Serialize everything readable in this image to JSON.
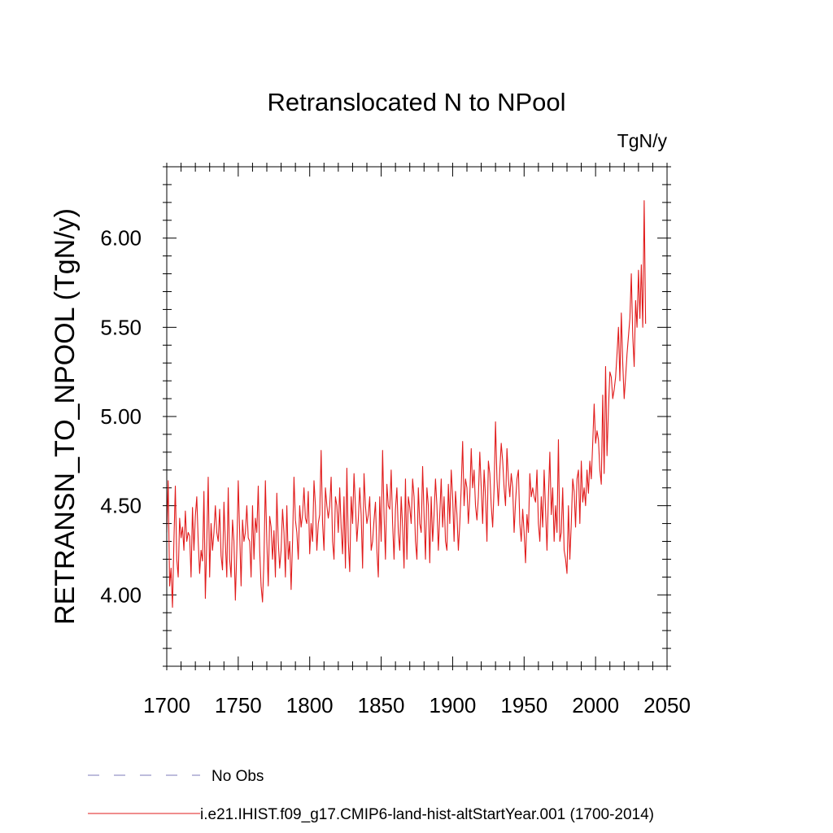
{
  "chart_data": {
    "type": "line",
    "title": "Retranslocated N to NPool",
    "units_label": "TgN/y",
    "ylabel": "RETRANSN_TO_NPOOL  (TgN/y)",
    "xlabel": "",
    "xlim": [
      1700,
      2050
    ],
    "ylim": [
      3.6,
      6.4
    ],
    "x_ticks": [
      1700,
      1750,
      1800,
      1850,
      1900,
      1950,
      2000,
      2050
    ],
    "y_ticks": [
      "4.00",
      "4.50",
      "5.00",
      "5.50",
      "6.00"
    ],
    "grid": false,
    "legend_placement": "bottom",
    "legend": [
      {
        "label": "No Obs",
        "style": "dashed",
        "color": "#7b78b8"
      },
      {
        "label": "i.e21.IHIST.f09_g17.CMIP6-land-hist-altStartYear.001 (1700-2014)",
        "style": "solid",
        "color": "#e11b1b"
      }
    ],
    "series": [
      {
        "name": "i.e21.IHIST.f09_g17.CMIP6-land-hist-altStartYear.001 (1700-2014)",
        "color": "#e11b1b",
        "x_start": 1700,
        "x_step": 1,
        "values": [
          4.35,
          4.64,
          4.05,
          4.15,
          3.93,
          4.3,
          4.61,
          4.2,
          4.1,
          4.43,
          4.32,
          4.38,
          4.25,
          4.47,
          4.3,
          4.35,
          4.33,
          4.1,
          4.49,
          4.25,
          4.44,
          4.55,
          4.3,
          4.12,
          4.25,
          4.19,
          4.58,
          3.98,
          4.3,
          4.66,
          4.1,
          4.4,
          4.25,
          4.35,
          4.5,
          4.35,
          4.3,
          4.48,
          4.22,
          4.14,
          4.52,
          4.29,
          4.1,
          4.6,
          4.2,
          4.1,
          4.42,
          4.3,
          3.97,
          4.25,
          4.64,
          4.35,
          4.05,
          4.42,
          4.3,
          4.35,
          4.5,
          4.32,
          4.3,
          4.1,
          4.5,
          4.2,
          4.43,
          4.35,
          4.61,
          4.25,
          4.05,
          3.96,
          4.2,
          4.64,
          4.3,
          4.05,
          4.44,
          4.38,
          4.2,
          4.36,
          4.1,
          4.57,
          4.3,
          4.15,
          4.25,
          4.48,
          4.35,
          4.1,
          4.5,
          4.2,
          4.3,
          4.03,
          4.3,
          4.66,
          4.42,
          4.35,
          4.2,
          4.5,
          4.38,
          4.45,
          4.6,
          4.43,
          4.4,
          4.58,
          4.23,
          4.4,
          4.3,
          4.64,
          4.5,
          4.25,
          4.4,
          4.45,
          4.81,
          4.4,
          4.25,
          4.6,
          4.5,
          4.43,
          4.5,
          4.66,
          4.3,
          4.2,
          4.55,
          4.5,
          4.35,
          4.6,
          4.38,
          4.23,
          4.55,
          4.15,
          4.71,
          4.3,
          4.13,
          4.55,
          4.4,
          4.68,
          4.5,
          4.3,
          4.42,
          4.6,
          4.45,
          4.15,
          4.68,
          4.5,
          4.4,
          4.45,
          4.55,
          4.25,
          4.3,
          4.42,
          4.52,
          4.25,
          4.1,
          4.55,
          4.3,
          4.81,
          4.45,
          4.2,
          4.62,
          4.5,
          4.48,
          4.7,
          4.4,
          4.2,
          4.48,
          4.6,
          4.35,
          4.25,
          4.55,
          4.38,
          4.15,
          4.65,
          4.2,
          4.55,
          4.49,
          4.4,
          4.65,
          4.55,
          4.3,
          4.2,
          4.6,
          4.4,
          4.35,
          4.72,
          4.45,
          4.2,
          4.6,
          4.5,
          4.18,
          4.55,
          4.3,
          4.45,
          4.65,
          4.5,
          4.25,
          4.45,
          4.65,
          4.38,
          4.55,
          4.3,
          4.25,
          4.62,
          4.4,
          4.7,
          4.55,
          4.3,
          4.58,
          4.45,
          4.25,
          4.4,
          4.6,
          4.86,
          4.5,
          4.65,
          4.6,
          4.4,
          4.55,
          4.82,
          4.6,
          4.7,
          4.5,
          4.42,
          4.55,
          4.8,
          4.6,
          4.4,
          4.7,
          4.55,
          4.3,
          4.75,
          4.68,
          4.5,
          4.38,
          4.6,
          4.97,
          4.65,
          4.5,
          4.7,
          4.85,
          4.75,
          4.6,
          4.5,
          4.82,
          4.65,
          4.55,
          4.68,
          4.6,
          4.35,
          4.52,
          4.65,
          4.7,
          4.4,
          4.3,
          4.48,
          4.35,
          4.18,
          4.45,
          4.35,
          4.68,
          4.55,
          4.6,
          4.55,
          4.52,
          4.7,
          4.4,
          4.3,
          4.55,
          4.38,
          4.7,
          4.48,
          4.25,
          4.55,
          4.8,
          4.45,
          4.6,
          4.3,
          4.5,
          4.35,
          4.87,
          4.3,
          4.35,
          4.6,
          4.25,
          4.2,
          4.12,
          4.5,
          4.2,
          4.4,
          4.65,
          4.58,
          4.38,
          4.65,
          4.7,
          4.4,
          4.75,
          4.52,
          4.6,
          4.5,
          4.7,
          4.57,
          4.75,
          4.65,
          4.85,
          5.07,
          4.85,
          4.92,
          4.87,
          4.7,
          4.62,
          5.12,
          4.68,
          5.28,
          4.78,
          5.04,
          5.25,
          5.22,
          5.1,
          5.15,
          5.22,
          5.35,
          5.5,
          5.2,
          5.58,
          5.3,
          5.1,
          5.22,
          5.35,
          5.45,
          5.55,
          5.8,
          5.45,
          5.28,
          5.65,
          5.5,
          5.82,
          5.55,
          5.85,
          5.5,
          6.21,
          5.52
        ]
      }
    ]
  }
}
